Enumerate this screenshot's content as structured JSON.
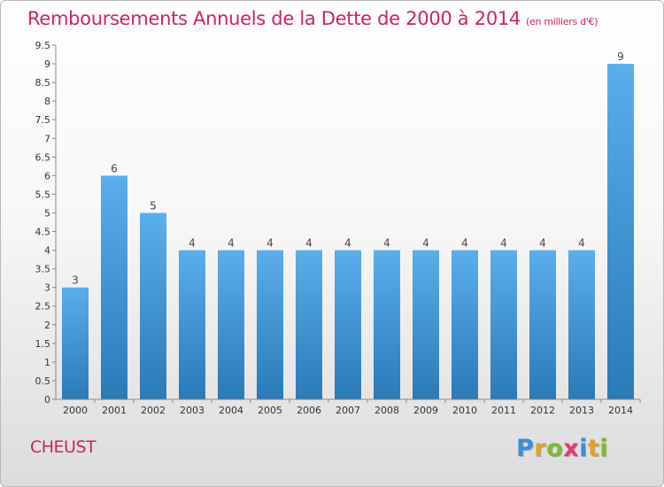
{
  "header": {
    "title": "Remboursements Annuels de la Dette de 2000 à 2014",
    "unit": "(en milliers d'€)"
  },
  "footer": {
    "commune": "CHEUST",
    "logo_text": "Proxiti",
    "logo_letters": [
      {
        "ch": "P",
        "color": "#3a8fd6"
      },
      {
        "ch": "r",
        "color": "#e8a020"
      },
      {
        "ch": "o",
        "color": "#7cbd2a"
      },
      {
        "ch": "x",
        "color": "#e23a6e"
      },
      {
        "ch": "i",
        "color": "#3a8fd6"
      },
      {
        "ch": "t",
        "color": "#e8a020"
      },
      {
        "ch": "i",
        "color": "#7cbd2a"
      }
    ]
  },
  "colors": {
    "bar_top": "#5aaeea",
    "bar_bottom": "#2a7ab8",
    "title": "#cc2266"
  },
  "chart_data": {
    "type": "bar",
    "title": "Remboursements Annuels de la Dette de 2000 à 2014",
    "subtitle": "(en milliers d'€)",
    "xlabel": "",
    "ylabel": "",
    "categories": [
      "2000",
      "2001",
      "2002",
      "2003",
      "2004",
      "2005",
      "2006",
      "2007",
      "2008",
      "2009",
      "2010",
      "2011",
      "2012",
      "2013",
      "2014"
    ],
    "values": [
      3,
      6,
      5,
      4,
      4,
      4,
      4,
      4,
      4,
      4,
      4,
      4,
      4,
      4,
      9
    ],
    "data_labels": [
      "3",
      "6",
      "5",
      "4",
      "4",
      "4",
      "4",
      "4",
      "4",
      "4",
      "4",
      "4",
      "4",
      "4",
      "9"
    ],
    "ylim": [
      0,
      9.5
    ],
    "yticks": [
      0,
      0.5,
      1,
      1.5,
      2,
      2.5,
      3,
      3.5,
      4,
      4.5,
      5,
      5.5,
      6,
      6.5,
      7,
      7.5,
      8,
      8.5,
      9,
      9.5
    ],
    "ytick_labels": [
      "0",
      "0.5",
      "1",
      "1.5",
      "2",
      "2.5",
      "3",
      "3.5",
      "4",
      "4.5",
      "5",
      "5.5",
      "6",
      "6.5",
      "7",
      "7.5",
      "8",
      "8.5",
      "9",
      "9.5"
    ],
    "grid": false,
    "legend": "none"
  }
}
